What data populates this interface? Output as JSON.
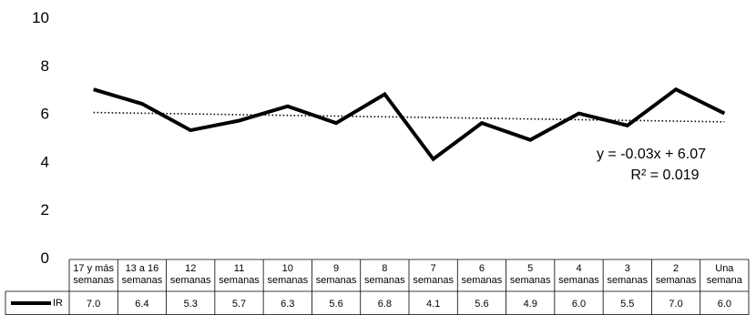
{
  "chart_data": {
    "type": "line",
    "categories": [
      [
        "17 y más",
        "semanas"
      ],
      [
        "13 a 16",
        "semanas"
      ],
      [
        "12",
        "semanas"
      ],
      [
        "11",
        "semanas"
      ],
      [
        "10",
        "semanas"
      ],
      [
        "9",
        "semanas"
      ],
      [
        "8",
        "semanas"
      ],
      [
        "7",
        "semanas"
      ],
      [
        "6",
        "semanas"
      ],
      [
        "5",
        "semanas"
      ],
      [
        "4",
        "semanas"
      ],
      [
        "3",
        "semanas"
      ],
      [
        "2",
        "semanas"
      ],
      [
        "Una",
        "semana"
      ]
    ],
    "series": [
      {
        "name": "IR",
        "values": [
          7.0,
          6.4,
          5.3,
          5.7,
          6.3,
          5.6,
          6.8,
          4.1,
          5.6,
          4.9,
          6.0,
          5.5,
          7.0,
          6.0
        ],
        "labels": [
          "7.0",
          "6.4",
          "5.3",
          "5.7",
          "6.3",
          "5.6",
          "6.8",
          "4.1",
          "5.6",
          "4.9",
          "6.0",
          "5.5",
          "7.0",
          "6.0"
        ],
        "color": "#000000"
      }
    ],
    "trendline": {
      "slope": -0.03,
      "intercept": 6.07,
      "equation": "y = -0.03x + 6.07",
      "r2": "R² = 0.019"
    },
    "ylim": [
      0,
      10
    ],
    "yticks": [
      "0",
      "2",
      "4",
      "6",
      "8",
      "10"
    ],
    "grid": false,
    "data_table": true
  }
}
